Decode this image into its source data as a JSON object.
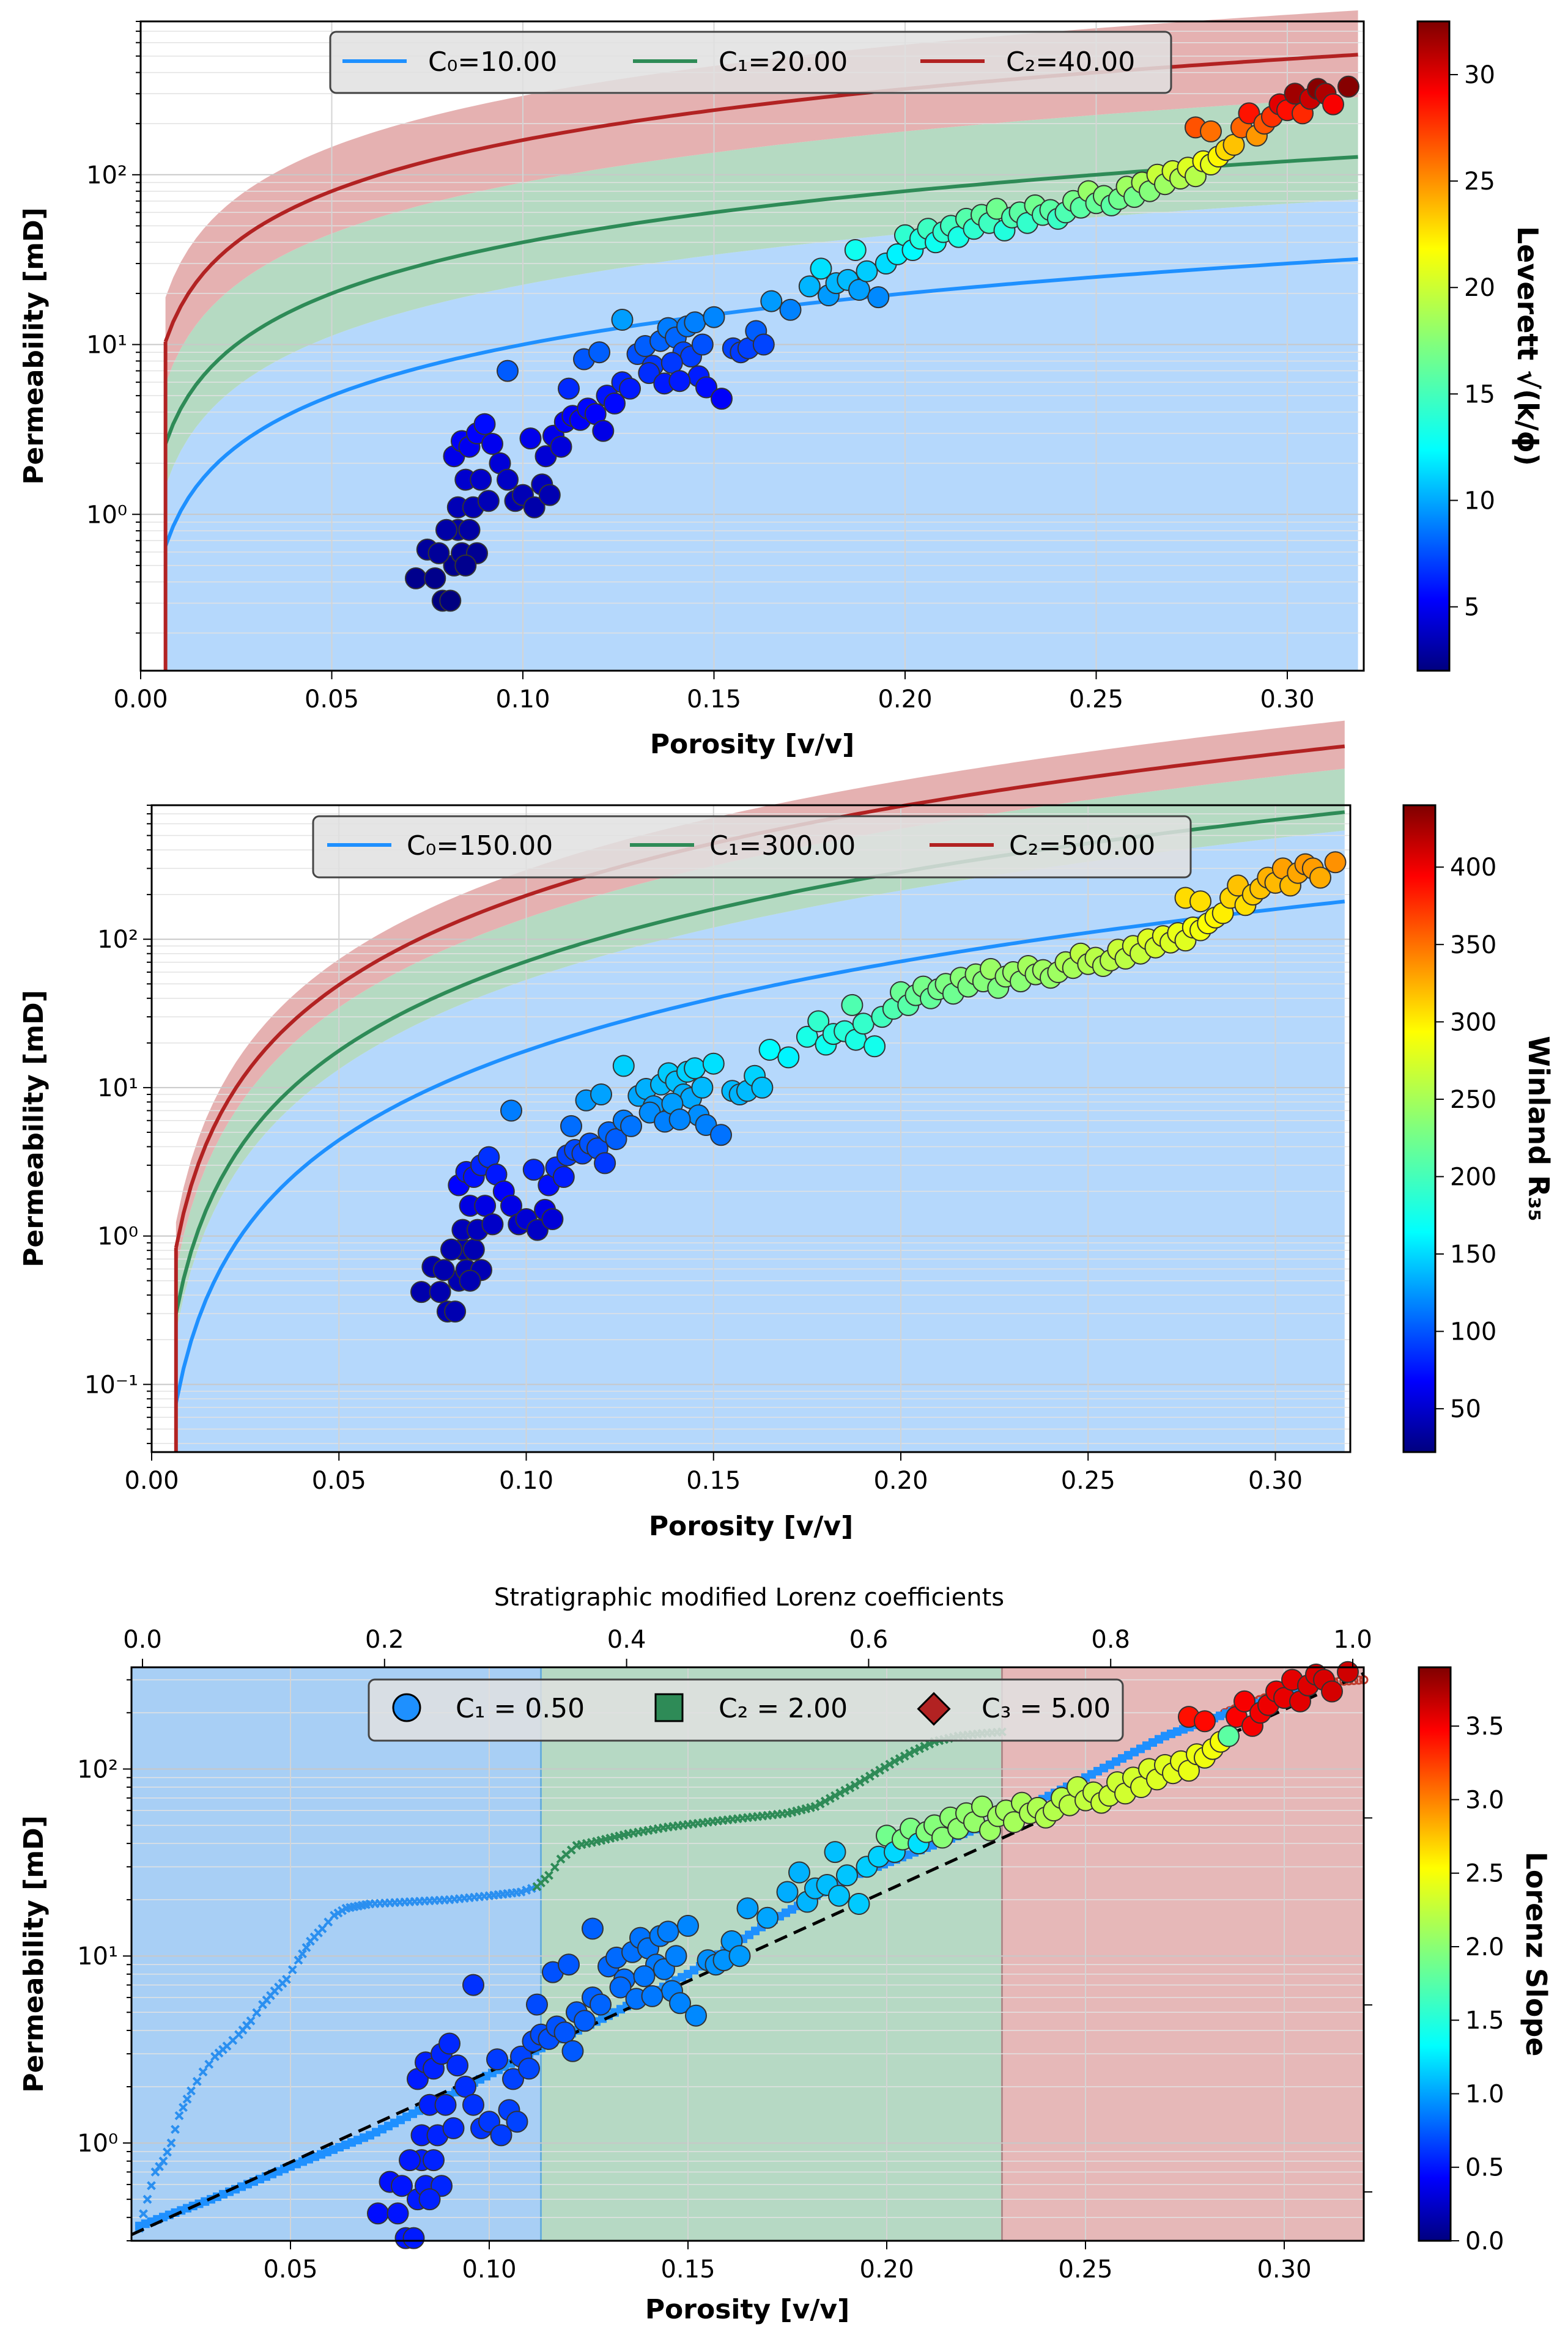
{
  "chart_data": [
    {
      "type": "scatter",
      "xlabel": "Porosity [v/v]",
      "ylabel": "Permeability [mD]",
      "xlim": [
        0.0,
        0.32
      ],
      "ylim": [
        0.12,
        800
      ],
      "yscale": "log",
      "xticks": [
        "0.00",
        "0.05",
        "0.10",
        "0.15",
        "0.20",
        "0.25",
        "0.30"
      ],
      "yticks": [
        "10⁰",
        "10¹",
        "10²"
      ],
      "colorbar": {
        "label": "Leverett √(k/ϕ)",
        "min": 2,
        "max": 32.5,
        "ticks": [
          "5",
          "10",
          "15",
          "20",
          "25",
          "30"
        ],
        "colormap": "jet"
      },
      "legend": {
        "position": "top-center",
        "entries": [
          "C₀=10.00",
          "C₁=20.00",
          "C₂=40.00"
        ]
      },
      "curves": [
        {
          "name": "C₀=10.00",
          "color": "#1e90ff",
          "C": 10
        },
        {
          "name": "C₁=20.00",
          "color": "#2e8b57",
          "C": 20
        },
        {
          "name": "C₂=40.00",
          "color": "#b22222",
          "C": 40
        }
      ],
      "bands": [
        {
          "color": "#66b3ff",
          "range": "below C₀–C₁ midline"
        },
        {
          "color": "#8fbc8f",
          "range": "C₀–C₁ to C₁–C₂ midlines"
        },
        {
          "color": "#cd5c5c",
          "range": "C₁–C₂ midline to upper"
        }
      ],
      "grid": true,
      "scatter_ref": "samples"
    },
    {
      "type": "scatter",
      "xlabel": "Porosity [v/v]",
      "ylabel": "Permeability [mD]",
      "xlim": [
        0.0,
        0.32
      ],
      "ylim": [
        0.035,
        800
      ],
      "yscale": "log",
      "xticks": [
        "0.00",
        "0.05",
        "0.10",
        "0.15",
        "0.20",
        "0.25",
        "0.30"
      ],
      "yticks": [
        "10⁻¹",
        "10⁰",
        "10¹",
        "10²"
      ],
      "colorbar": {
        "label": "Winland R₃₅",
        "min": 22,
        "max": 440,
        "ticks": [
          "50",
          "100",
          "150",
          "200",
          "250",
          "300",
          "350",
          "400"
        ],
        "colormap": "jet"
      },
      "legend": {
        "position": "top-center",
        "entries": [
          "C₀=150.00",
          "C₁=300.00",
          "C₂=500.00"
        ]
      },
      "curves": [
        {
          "name": "C₀=150.00",
          "color": "#1e90ff",
          "C": 150
        },
        {
          "name": "C₁=300.00",
          "color": "#2e8b57",
          "C": 300
        },
        {
          "name": "C₂=500.00",
          "color": "#b22222",
          "C": 500
        }
      ],
      "grid": true,
      "scatter_ref": "samples"
    },
    {
      "type": "scatter",
      "title_top": "Stratigraphic modified Lorenz coefficients",
      "xlabel": "Porosity [v/v]",
      "ylabel": "Permeability [mD]",
      "xlim": [
        0.01,
        0.32
      ],
      "ylim": [
        0.3,
        350
      ],
      "yscale": "log",
      "xticks": [
        "0.05",
        "0.10",
        "0.15",
        "0.20",
        "0.25",
        "0.30"
      ],
      "yticks": [
        "10⁰",
        "10¹",
        "10²"
      ],
      "top_xticks": [
        "0.0",
        "0.2",
        "0.4",
        "0.6",
        "0.8",
        "1.0"
      ],
      "colorbar": {
        "label": "Lorenz Slope",
        "min": 0.0,
        "max": 3.9,
        "ticks": [
          "0.0",
          "0.5",
          "1.0",
          "1.5",
          "2.0",
          "2.5",
          "3.0",
          "3.5"
        ],
        "colormap": "jet"
      },
      "legend": {
        "position": "top-center",
        "entries": [
          "C₁ = 0.50",
          "C₂ = 2.00",
          "C₃ = 5.00"
        ]
      },
      "regions": [
        {
          "x_from": 0.01,
          "x_to": 0.113,
          "color": "#a8cff5"
        },
        {
          "x_from": 0.113,
          "x_to": 0.229,
          "color": "#b6d9c4"
        },
        {
          "x_from": 0.229,
          "x_to": 0.32,
          "color": "#e6b8b8"
        }
      ],
      "grid": true,
      "scatter_ref": "samples"
    }
  ],
  "samples": [
    [
      0.072,
      0.42
    ],
    [
      0.075,
      0.62
    ],
    [
      0.077,
      0.42
    ],
    [
      0.079,
      0.31
    ],
    [
      0.081,
      0.31
    ],
    [
      0.082,
      0.5
    ],
    [
      0.083,
      0.81
    ],
    [
      0.08,
      0.81
    ],
    [
      0.078,
      0.59
    ],
    [
      0.084,
      0.59
    ],
    [
      0.086,
      0.81
    ],
    [
      0.088,
      0.59
    ],
    [
      0.085,
      0.5
    ],
    [
      0.083,
      1.1
    ],
    [
      0.085,
      1.6
    ],
    [
      0.087,
      1.1
    ],
    [
      0.089,
      1.6
    ],
    [
      0.091,
      1.2
    ],
    [
      0.082,
      2.2
    ],
    [
      0.084,
      2.7
    ],
    [
      0.086,
      2.5
    ],
    [
      0.088,
      3.0
    ],
    [
      0.09,
      3.4
    ],
    [
      0.092,
      2.6
    ],
    [
      0.094,
      2.0
    ],
    [
      0.096,
      1.6
    ],
    [
      0.098,
      1.2
    ],
    [
      0.1,
      1.3
    ],
    [
      0.103,
      1.1
    ],
    [
      0.105,
      1.5
    ],
    [
      0.107,
      1.3
    ],
    [
      0.096,
      7.0
    ],
    [
      0.102,
      2.8
    ],
    [
      0.106,
      2.2
    ],
    [
      0.108,
      2.9
    ],
    [
      0.11,
      2.5
    ],
    [
      0.111,
      3.5
    ],
    [
      0.113,
      3.8
    ],
    [
      0.115,
      3.6
    ],
    [
      0.117,
      4.2
    ],
    [
      0.119,
      3.9
    ],
    [
      0.121,
      3.1
    ],
    [
      0.112,
      5.5
    ],
    [
      0.116,
      8.2
    ],
    [
      0.12,
      9.0
    ],
    [
      0.122,
      5.0
    ],
    [
      0.124,
      4.5
    ],
    [
      0.126,
      6.0
    ],
    [
      0.128,
      5.5
    ],
    [
      0.126,
      14.0
    ],
    [
      0.13,
      8.8
    ],
    [
      0.132,
      9.8
    ],
    [
      0.134,
      7.5
    ],
    [
      0.136,
      10.5
    ],
    [
      0.138,
      12.5
    ],
    [
      0.14,
      11.0
    ],
    [
      0.142,
      9.0
    ],
    [
      0.144,
      8.5
    ],
    [
      0.146,
      6.5
    ],
    [
      0.148,
      5.6
    ],
    [
      0.133,
      6.8
    ],
    [
      0.137,
      5.9
    ],
    [
      0.139,
      7.8
    ],
    [
      0.141,
      6.1
    ],
    [
      0.143,
      12.8
    ],
    [
      0.145,
      13.5
    ],
    [
      0.147,
      10.0
    ],
    [
      0.15,
      14.5
    ],
    [
      0.152,
      4.8
    ],
    [
      0.155,
      9.5
    ],
    [
      0.157,
      9.0
    ],
    [
      0.159,
      9.5
    ],
    [
      0.161,
      12.0
    ],
    [
      0.163,
      10.0
    ],
    [
      0.165,
      18.0
    ],
    [
      0.17,
      16.0
    ],
    [
      0.175,
      22.0
    ],
    [
      0.178,
      28.0
    ],
    [
      0.18,
      19.5
    ],
    [
      0.182,
      23.0
    ],
    [
      0.185,
      24.0
    ],
    [
      0.187,
      36.0
    ],
    [
      0.188,
      21.0
    ],
    [
      0.19,
      27.0
    ],
    [
      0.193,
      19.0
    ],
    [
      0.195,
      30.0
    ],
    [
      0.198,
      34.0
    ],
    [
      0.2,
      44.0
    ],
    [
      0.202,
      36.0
    ],
    [
      0.204,
      42.0
    ],
    [
      0.206,
      48.0
    ],
    [
      0.208,
      40.0
    ],
    [
      0.21,
      46.0
    ],
    [
      0.212,
      50.0
    ],
    [
      0.214,
      43.0
    ],
    [
      0.216,
      55.0
    ],
    [
      0.218,
      48.0
    ],
    [
      0.22,
      58.0
    ],
    [
      0.222,
      52.0
    ],
    [
      0.224,
      63.0
    ],
    [
      0.226,
      47.0
    ],
    [
      0.228,
      56.0
    ],
    [
      0.23,
      60.0
    ],
    [
      0.232,
      52.0
    ],
    [
      0.234,
      66.0
    ],
    [
      0.236,
      58.0
    ],
    [
      0.238,
      62.0
    ],
    [
      0.24,
      55.0
    ],
    [
      0.242,
      60.0
    ],
    [
      0.244,
      70.0
    ],
    [
      0.246,
      64.0
    ],
    [
      0.248,
      80.0
    ],
    [
      0.25,
      68.0
    ],
    [
      0.252,
      75.0
    ],
    [
      0.254,
      66.0
    ],
    [
      0.256,
      72.0
    ],
    [
      0.258,
      85.0
    ],
    [
      0.26,
      74.0
    ],
    [
      0.262,
      90.0
    ],
    [
      0.264,
      80.0
    ],
    [
      0.266,
      100.0
    ],
    [
      0.268,
      88.0
    ],
    [
      0.27,
      105.0
    ],
    [
      0.272,
      95.0
    ],
    [
      0.274,
      110.0
    ],
    [
      0.276,
      98.0
    ],
    [
      0.278,
      120.0
    ],
    [
      0.28,
      115.0
    ],
    [
      0.282,
      128.0
    ],
    [
      0.284,
      140.0
    ],
    [
      0.276,
      190.0
    ],
    [
      0.28,
      180.0
    ],
    [
      0.286,
      150.0
    ],
    [
      0.288,
      190.0
    ],
    [
      0.29,
      230.0
    ],
    [
      0.292,
      170.0
    ],
    [
      0.294,
      200.0
    ],
    [
      0.296,
      220.0
    ],
    [
      0.298,
      260.0
    ],
    [
      0.3,
      240.0
    ],
    [
      0.302,
      300.0
    ],
    [
      0.304,
      230.0
    ],
    [
      0.306,
      280.0
    ],
    [
      0.308,
      320.0
    ],
    [
      0.31,
      300.0
    ],
    [
      0.312,
      260.0
    ],
    [
      0.316,
      330.0
    ]
  ],
  "lorenz_curves": {
    "light_blue_x": [
      [
        0.012,
        0.35
      ],
      [
        0.014,
        0.5
      ],
      [
        0.016,
        0.7
      ],
      [
        0.018,
        0.8
      ],
      [
        0.02,
        1.0
      ],
      [
        0.022,
        1.4
      ],
      [
        0.025,
        1.9
      ],
      [
        0.028,
        2.4
      ],
      [
        0.031,
        2.9
      ],
      [
        0.034,
        3.3
      ],
      [
        0.037,
        3.8
      ],
      [
        0.04,
        4.5
      ],
      [
        0.043,
        5.5
      ],
      [
        0.046,
        6.5
      ],
      [
        0.049,
        7.5
      ],
      [
        0.052,
        9.5
      ],
      [
        0.055,
        12.0
      ],
      [
        0.058,
        14.0
      ],
      [
        0.061,
        16.5
      ],
      [
        0.064,
        18.0
      ],
      [
        0.067,
        18.5
      ],
      [
        0.07,
        19.0
      ],
      [
        0.08,
        19.5
      ],
      [
        0.09,
        20.0
      ],
      [
        0.1,
        21.0
      ],
      [
        0.108,
        22.0
      ],
      [
        0.112,
        23.5
      ]
    ],
    "green_x": [
      [
        0.112,
        23.5
      ],
      [
        0.115,
        27.0
      ],
      [
        0.118,
        33.0
      ],
      [
        0.122,
        39.0
      ],
      [
        0.127,
        41.0
      ],
      [
        0.135,
        45.0
      ],
      [
        0.145,
        49.0
      ],
      [
        0.155,
        52.0
      ],
      [
        0.165,
        55.0
      ],
      [
        0.175,
        58.0
      ],
      [
        0.182,
        63.0
      ],
      [
        0.187,
        72.0
      ],
      [
        0.192,
        82.0
      ],
      [
        0.197,
        95.0
      ],
      [
        0.202,
        110.0
      ],
      [
        0.207,
        125.0
      ],
      [
        0.212,
        140.0
      ],
      [
        0.218,
        150.0
      ],
      [
        0.224,
        155.0
      ],
      [
        0.229,
        158.0
      ]
    ],
    "red_x": [
      [
        0.285,
        200.0
      ],
      [
        0.29,
        220.0
      ],
      [
        0.295,
        240.0
      ],
      [
        0.3,
        265.0
      ],
      [
        0.305,
        280.0
      ],
      [
        0.31,
        290.0
      ],
      [
        0.315,
        295.0
      ],
      [
        0.32,
        300.0
      ]
    ],
    "blue_band": [
      [
        0.012,
        0.36
      ],
      [
        0.03,
        0.5
      ],
      [
        0.05,
        0.75
      ],
      [
        0.07,
        1.1
      ],
      [
        0.09,
        1.8
      ],
      [
        0.11,
        3.0
      ],
      [
        0.13,
        4.8
      ],
      [
        0.15,
        8.0
      ],
      [
        0.17,
        15.0
      ],
      [
        0.19,
        26.0
      ],
      [
        0.21,
        38.0
      ],
      [
        0.23,
        55.0
      ],
      [
        0.25,
        90.0
      ],
      [
        0.27,
        150.0
      ],
      [
        0.29,
        215.0
      ],
      [
        0.31,
        290.0
      ]
    ]
  }
}
